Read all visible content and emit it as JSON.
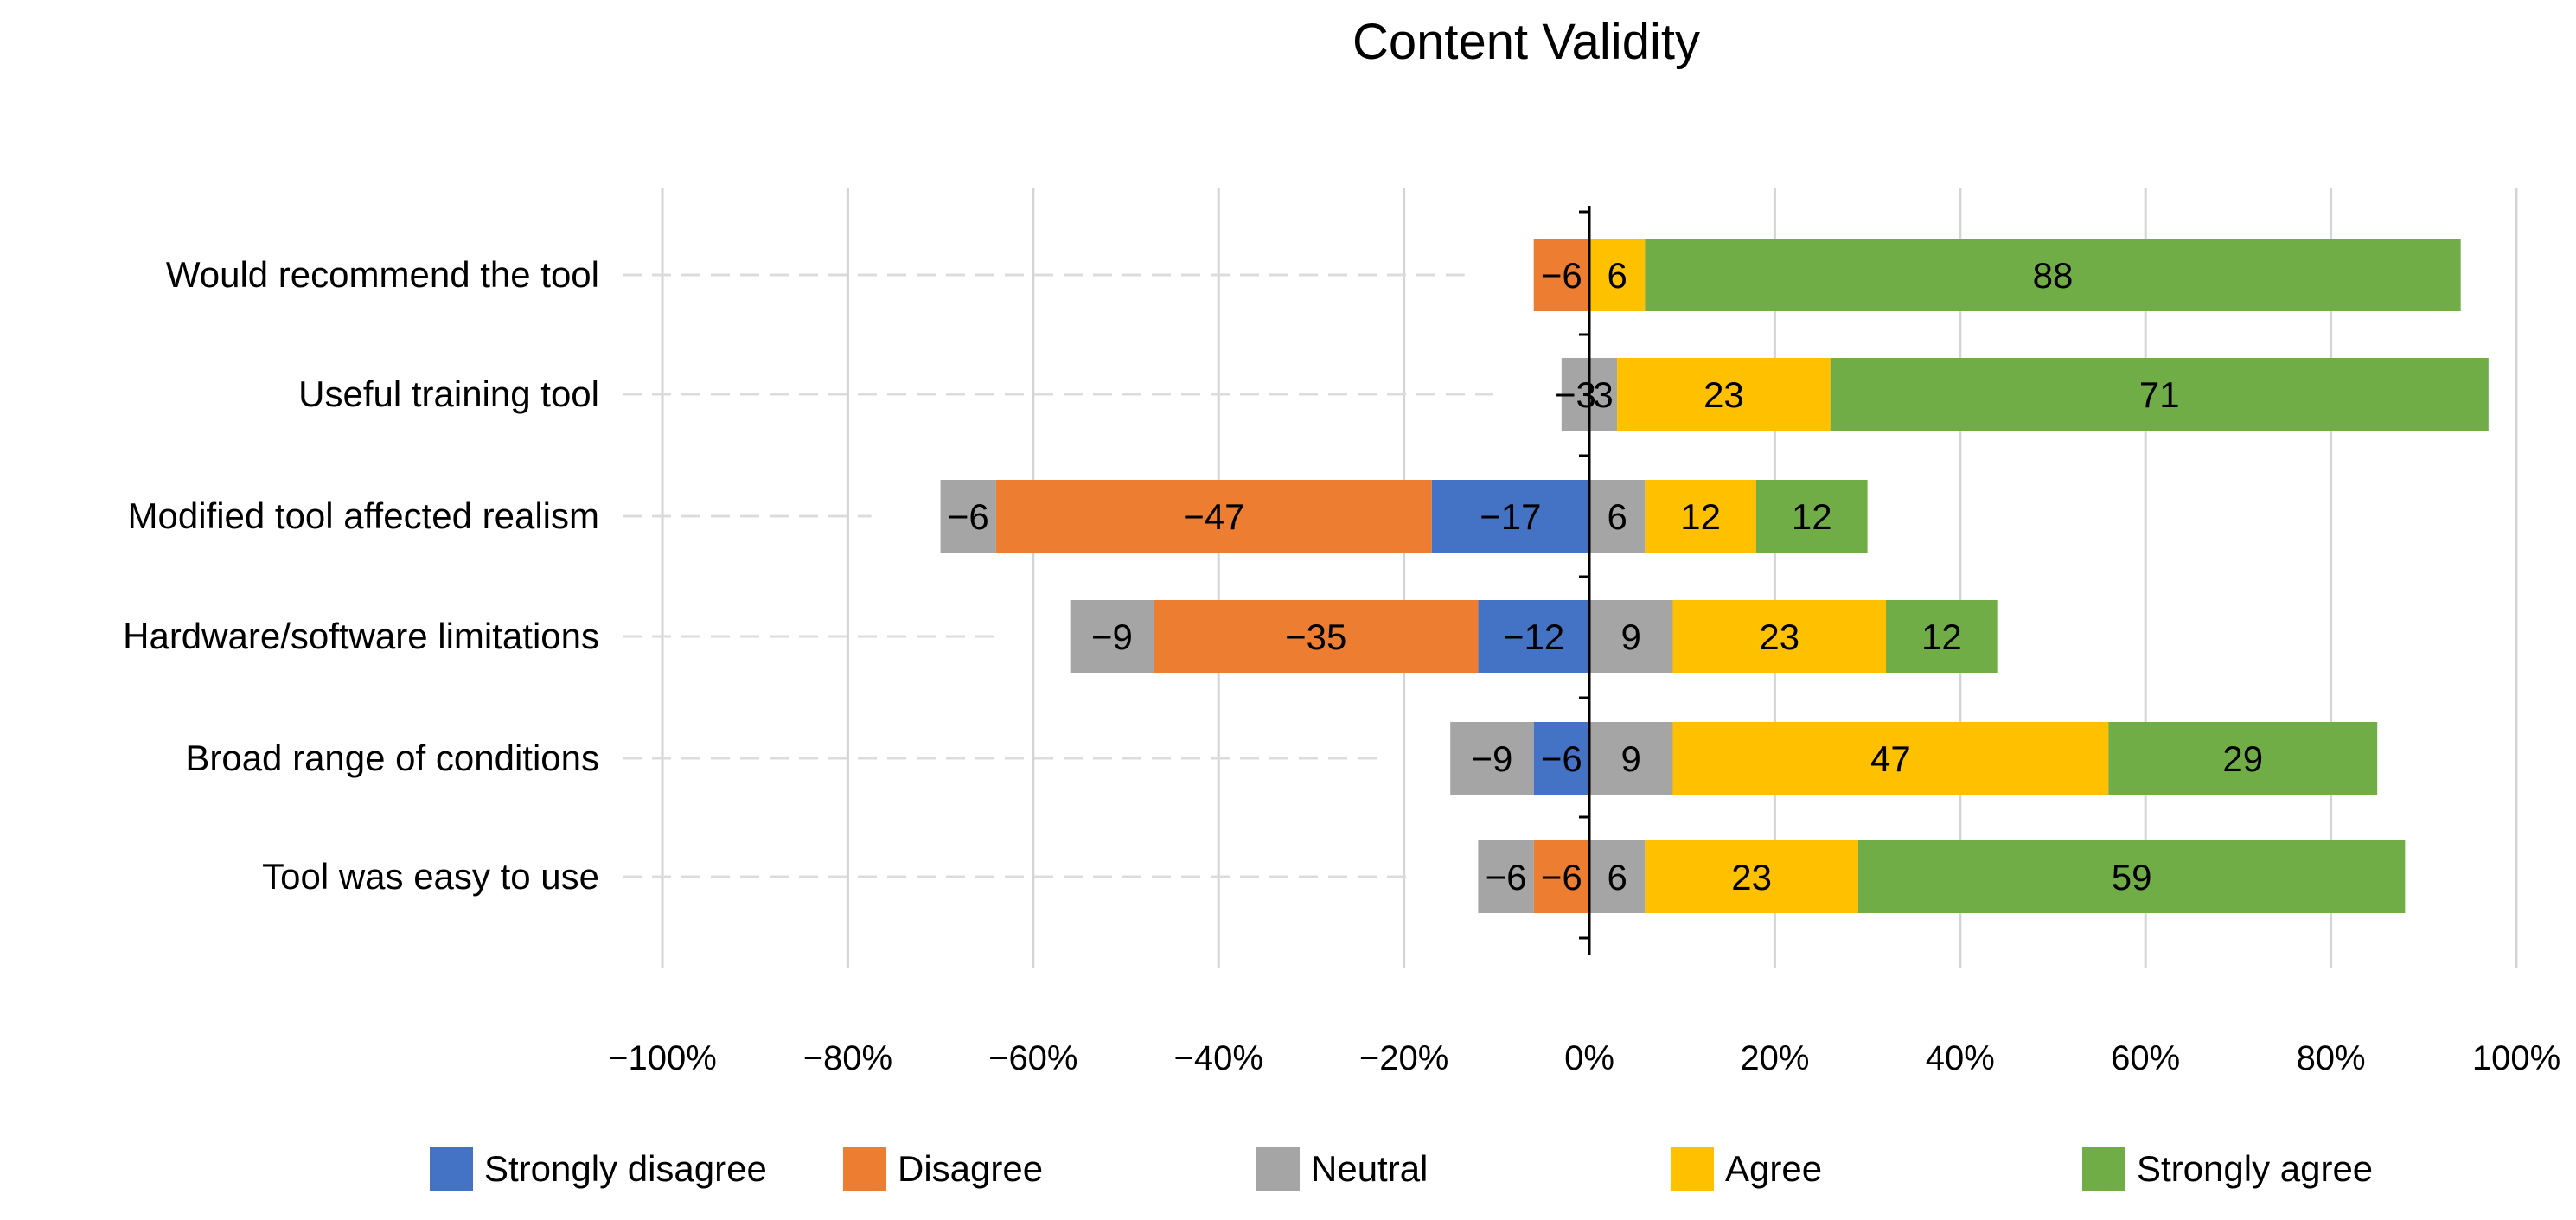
{
  "chart_data": {
    "type": "bar",
    "orientation": "horizontal",
    "stacked": "diverging",
    "title": "Content Validity",
    "xlabel": "",
    "ylabel": "",
    "xlim": [
      -100,
      100
    ],
    "x_ticks": [
      -100,
      -80,
      -60,
      -40,
      -20,
      0,
      20,
      40,
      60,
      80,
      100
    ],
    "x_tick_labels": [
      "−100%",
      "−80%",
      "−60%",
      "−40%",
      "−20%",
      "0%",
      "20%",
      "40%",
      "60%",
      "80%",
      "100%"
    ],
    "grid": "vertical",
    "legend_position": "bottom",
    "categories": [
      "Would recommend the tool",
      "Useful training tool",
      "Modified tool affected realism",
      "Hardware/software limitations",
      "Broad range of conditions",
      "Tool was easy to use"
    ],
    "series": [
      {
        "name": "Strongly disagree",
        "color": "#4472C4",
        "values": [
          0,
          0,
          -17,
          -12,
          -6,
          0
        ]
      },
      {
        "name": "Disagree",
        "color": "#ED7D31",
        "values": [
          -6,
          0,
          -47,
          -35,
          0,
          -6
        ]
      },
      {
        "name": "Neutral (negative half)",
        "color": "#A5A5A5",
        "values": [
          0,
          -3,
          -6,
          -9,
          -9,
          -6
        ]
      },
      {
        "name": "Neutral (positive half)",
        "color": "#A5A5A5",
        "values": [
          0,
          3,
          6,
          9,
          9,
          6
        ]
      },
      {
        "name": "Agree",
        "color": "#FFC000",
        "values": [
          6,
          23,
          12,
          23,
          47,
          23
        ]
      },
      {
        "name": "Strongly agree",
        "color": "#70AD47",
        "values": [
          88,
          71,
          12,
          12,
          29,
          59
        ]
      }
    ],
    "bar_value_labels": [
      [
        "−6",
        "6",
        "88"
      ],
      [
        "−3",
        "3",
        "23",
        "71"
      ],
      [
        "−17",
        "−47",
        "−6",
        "6",
        "12",
        "12"
      ],
      [
        "−12",
        "−35",
        "−9",
        "9",
        "23",
        "12"
      ],
      [
        "−6",
        "−9",
        "9",
        "47",
        "29"
      ],
      [
        "−6",
        "−6",
        "6",
        "23",
        "59"
      ]
    ],
    "legend": [
      {
        "label": "Strongly disagree",
        "color": "#4472C4"
      },
      {
        "label": "Disagree",
        "color": "#ED7D31"
      },
      {
        "label": "Neutral",
        "color": "#A5A5A5"
      },
      {
        "label": "Agree",
        "color": "#FFC000"
      },
      {
        "label": "Strongly agree",
        "color": "#70AD47"
      }
    ]
  }
}
